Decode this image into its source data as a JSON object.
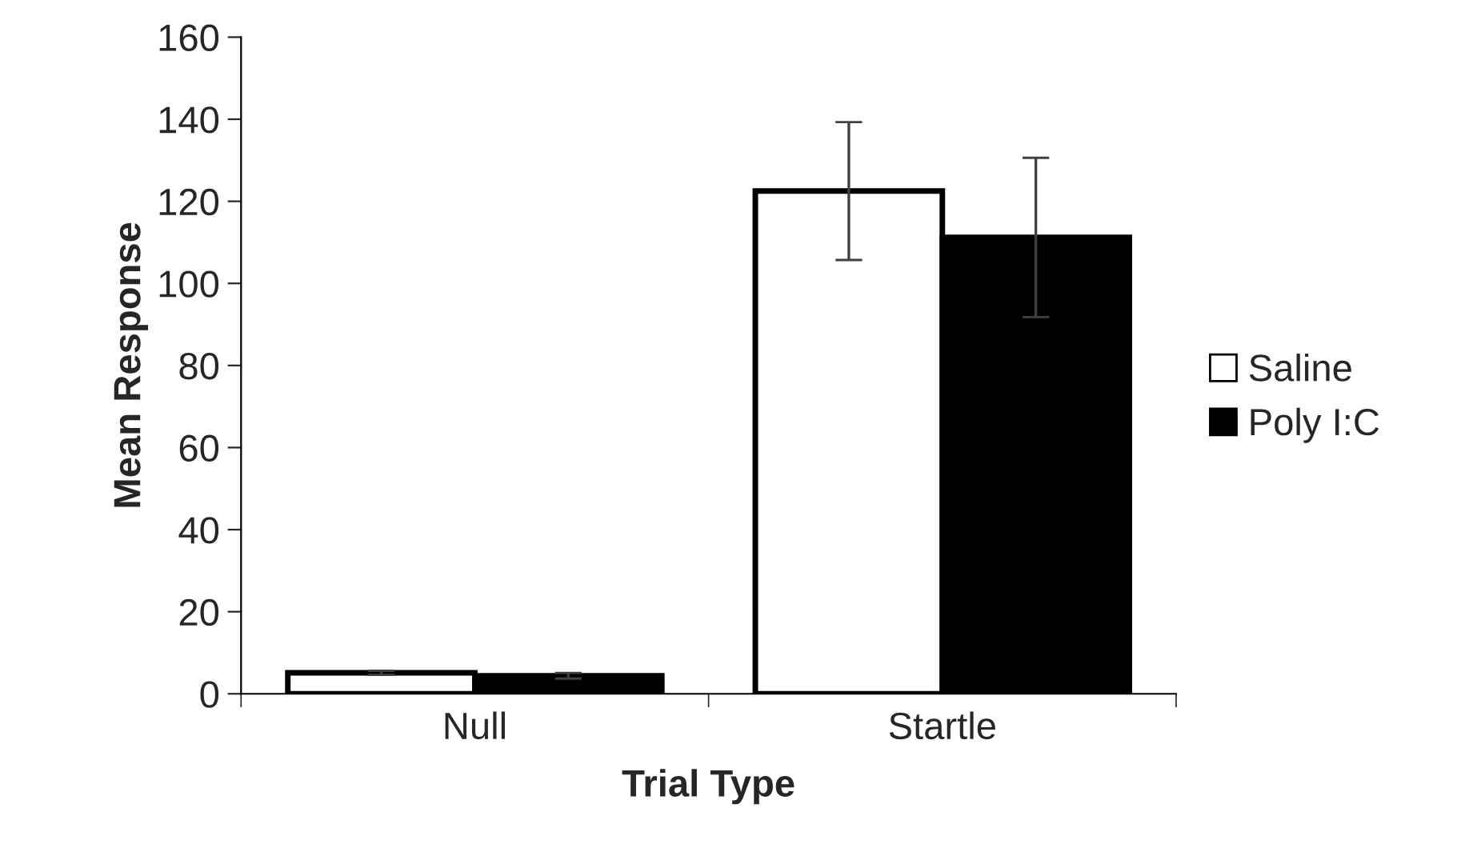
{
  "chart_data": {
    "type": "bar",
    "xlabel": "Trial Type",
    "ylabel": "Mean Response",
    "categories": [
      "Null",
      "Startle"
    ],
    "series": [
      {
        "name": "Saline",
        "color": "#ffffff",
        "values": [
          5.1,
          122.5
        ],
        "errors": [
          0.5,
          16.8
        ]
      },
      {
        "name": "Poly I:C",
        "color": "#000000",
        "values": [
          4.4,
          111.2
        ],
        "errors": [
          0.7,
          19.4
        ]
      }
    ],
    "ylim": [
      0,
      160
    ],
    "yticks": [
      0,
      20,
      40,
      60,
      80,
      100,
      120,
      140,
      160
    ],
    "grid": false,
    "legend": "right"
  }
}
